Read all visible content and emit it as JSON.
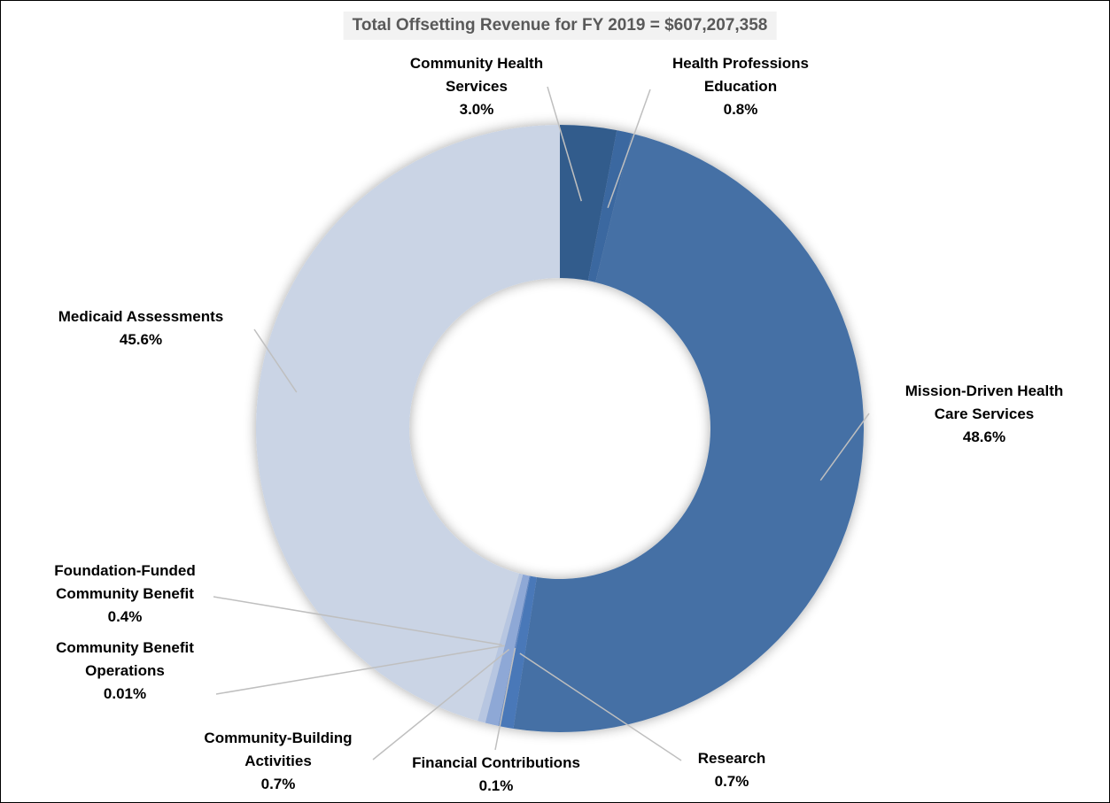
{
  "chart_data": {
    "type": "donut",
    "title": "Total Offsetting Revenue for FY 2019 = $607,207,358",
    "categories": [
      "Community Health Services",
      "Health Professions Education",
      "Mission-Driven Health Care Services",
      "Research",
      "Financial Contributions",
      "Community-Building Activities",
      "Community Benefit Operations",
      "Foundation-Funded Community Benefit",
      "Medicaid Assessments"
    ],
    "values": [
      3.0,
      0.8,
      48.6,
      0.7,
      0.1,
      0.7,
      0.01,
      0.4,
      45.6
    ],
    "value_labels": [
      "3.0%",
      "0.8%",
      "48.6%",
      "0.7%",
      "0.1%",
      "0.7%",
      "0.01%",
      "0.4%",
      "45.6%"
    ],
    "colors": [
      "#335b8c",
      "#3b67a0",
      "#4470a5",
      "#4a78b8",
      "#6387c2",
      "#8ea8d6",
      "#a8bbdf",
      "#b7c6e1",
      "#cad4e5"
    ]
  }
}
